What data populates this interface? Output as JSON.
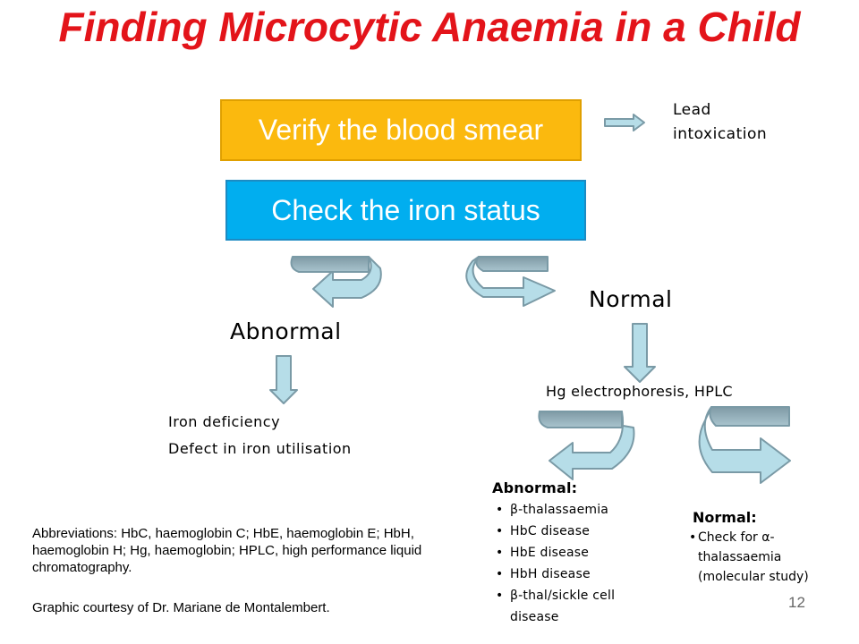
{
  "title": "Finding Microcytic Anaemia in a Child",
  "boxes": {
    "verify": "Verify the blood smear",
    "iron": "Check the iron status"
  },
  "lead": "Lead intoxication",
  "branches": {
    "abnormal": "Abnormal",
    "normal": "Normal"
  },
  "iron_results": {
    "line1": "Iron deficiency",
    "line2": "Defect in iron utilisation"
  },
  "hg": "Hg electrophoresis, HPLC",
  "hg_abnormal": {
    "heading": "Abnormal:",
    "items": [
      "β-thalassaemia",
      "HbC disease",
      "HbE disease",
      "HbH disease",
      "β-thal/sickle cell disease"
    ]
  },
  "hg_normal": {
    "heading": "Normal:",
    "items": [
      "Check for α-thalassaemia (molecular study)"
    ]
  },
  "abbreviations": "Abbreviations: HbC, haemoglobin C; HbE, haemoglobin E; HbH, haemoglobin H; Hg, haemoglobin; HPLC, high performance liquid chromatography.",
  "credit": "Graphic courtesy of Dr. Mariane de Montalembert.",
  "page_number": "12",
  "colors": {
    "title": "#e3141a",
    "verify_box": "#fbb90e",
    "iron_box": "#01aeef",
    "arrow_fill": "#b6dde8",
    "arrow_stroke": "#7a9aa6"
  }
}
